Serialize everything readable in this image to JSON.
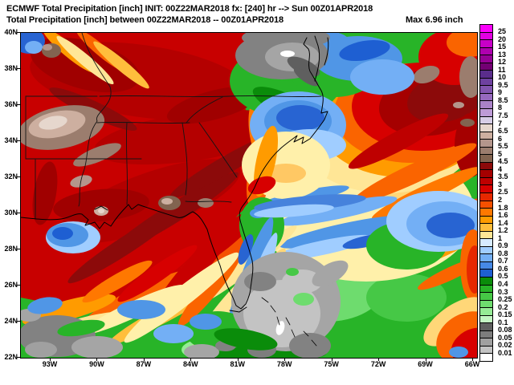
{
  "header": {
    "line1": "ECMWF Total Precipitation [inch] INIT: 00Z22MAR2018 fx: [240] hr --> Sun 00Z01APR2018",
    "line2": "Total Precipitation [inch] between 00Z22MAR2018 -- 00Z01APR2018",
    "max_label": "Max 6.96 inch"
  },
  "map_summary": {
    "model": "ECMWF",
    "variable": "Total Precipitation",
    "units": "inch",
    "init": "00Z22MAR2018",
    "forecast_hour": "240",
    "valid": "Sun 00Z01APR2018",
    "period": "00Z22MAR2018 -- 00Z01APR2018",
    "max_value": "6.96 inch",
    "precip_features": [
      {
        "area": "Lower Mississippi Valley / Deep South",
        "approx_range_inch": "3.5 - 7"
      },
      {
        "area": "Arkansas / Ozarks core",
        "approx_range_inch": "5 - 7"
      },
      {
        "area": "Louisiana coast near max",
        "approx_range_inch": "6 - 7"
      },
      {
        "area": "Mid-Atlantic Chesapeake dry slot",
        "approx_range_inch": "< 0.1"
      },
      {
        "area": "Carolinas coastal waters",
        "approx_range_inch": "0.5 - 1"
      },
      {
        "area": "Offshore western Atlantic blob",
        "approx_range_inch": "3 - 6"
      },
      {
        "area": "Gulf of Mexico banded streaks",
        "approx_range_inch": "1 - 4"
      },
      {
        "area": "Florida peninsula diagonal bands",
        "approx_range_inch": "0.5 - 4"
      },
      {
        "area": "Bahamas dry region",
        "approx_range_inch": "< 0.1"
      }
    ]
  },
  "axes": {
    "lat_labels": [
      "40N",
      "38N",
      "36N",
      "34N",
      "32N",
      "30N",
      "28N",
      "26N",
      "24N",
      "22N"
    ],
    "lon_labels": [
      "93W",
      "90W",
      "87W",
      "84W",
      "81W",
      "78W",
      "75W",
      "72W",
      "69W",
      "66W"
    ]
  },
  "legend": {
    "entries": [
      {
        "label": "25",
        "color": "#FB00FB"
      },
      {
        "label": "20",
        "color": "#E100E1"
      },
      {
        "label": "15",
        "color": "#C800C8"
      },
      {
        "label": "13",
        "color": "#AF00AF"
      },
      {
        "label": "12",
        "color": "#960096"
      },
      {
        "label": "11",
        "color": "#730073"
      },
      {
        "label": "10",
        "color": "#5A2D8C"
      },
      {
        "label": "9.5",
        "color": "#6E41A0"
      },
      {
        "label": "9",
        "color": "#8255AF"
      },
      {
        "label": "8.5",
        "color": "#9669BE"
      },
      {
        "label": "8",
        "color": "#AA82C8"
      },
      {
        "label": "7.5",
        "color": "#BE9BD7"
      },
      {
        "label": "7",
        "color": "#D7CDE6"
      },
      {
        "label": "6.5",
        "color": "#E6D7CD"
      },
      {
        "label": "6",
        "color": "#CDAFA0"
      },
      {
        "label": "5.5",
        "color": "#B4968C"
      },
      {
        "label": "5",
        "color": "#9B7D6E"
      },
      {
        "label": "4.5",
        "color": "#826450"
      },
      {
        "label": "4",
        "color": "#8C0A0A"
      },
      {
        "label": "3.5",
        "color": "#A50000"
      },
      {
        "label": "3",
        "color": "#BE0000"
      },
      {
        "label": "2.5",
        "color": "#D70000"
      },
      {
        "label": "2",
        "color": "#E62800"
      },
      {
        "label": "1.8",
        "color": "#F55000"
      },
      {
        "label": "1.6",
        "color": "#FF7800"
      },
      {
        "label": "1.4",
        "color": "#FF9B00"
      },
      {
        "label": "1.2",
        "color": "#FFBE3C"
      },
      {
        "label": "1",
        "color": "#FFE696"
      },
      {
        "label": "0.9",
        "color": "#D7EBFF"
      },
      {
        "label": "0.8",
        "color": "#A0CDFF"
      },
      {
        "label": "0.7",
        "color": "#73AFF5"
      },
      {
        "label": "0.6",
        "color": "#4689E6"
      },
      {
        "label": "0.5",
        "color": "#1E5FD2"
      },
      {
        "label": "0.4",
        "color": "#0A8C0A"
      },
      {
        "label": "0.3",
        "color": "#28B428"
      },
      {
        "label": "0.25",
        "color": "#46C846"
      },
      {
        "label": "0.2",
        "color": "#6EDC6E"
      },
      {
        "label": "0.15",
        "color": "#96EB96"
      },
      {
        "label": "0.1",
        "color": "#C3F5C3"
      },
      {
        "label": "0.08",
        "color": "#5F5F5F"
      },
      {
        "label": "0.05",
        "color": "#7D7D7D"
      },
      {
        "label": "0.02",
        "color": "#A0A0A0"
      },
      {
        "label": "0.01",
        "color": "#C3C3C3"
      },
      {
        "label": "",
        "color": "#FFFFFF"
      }
    ]
  }
}
